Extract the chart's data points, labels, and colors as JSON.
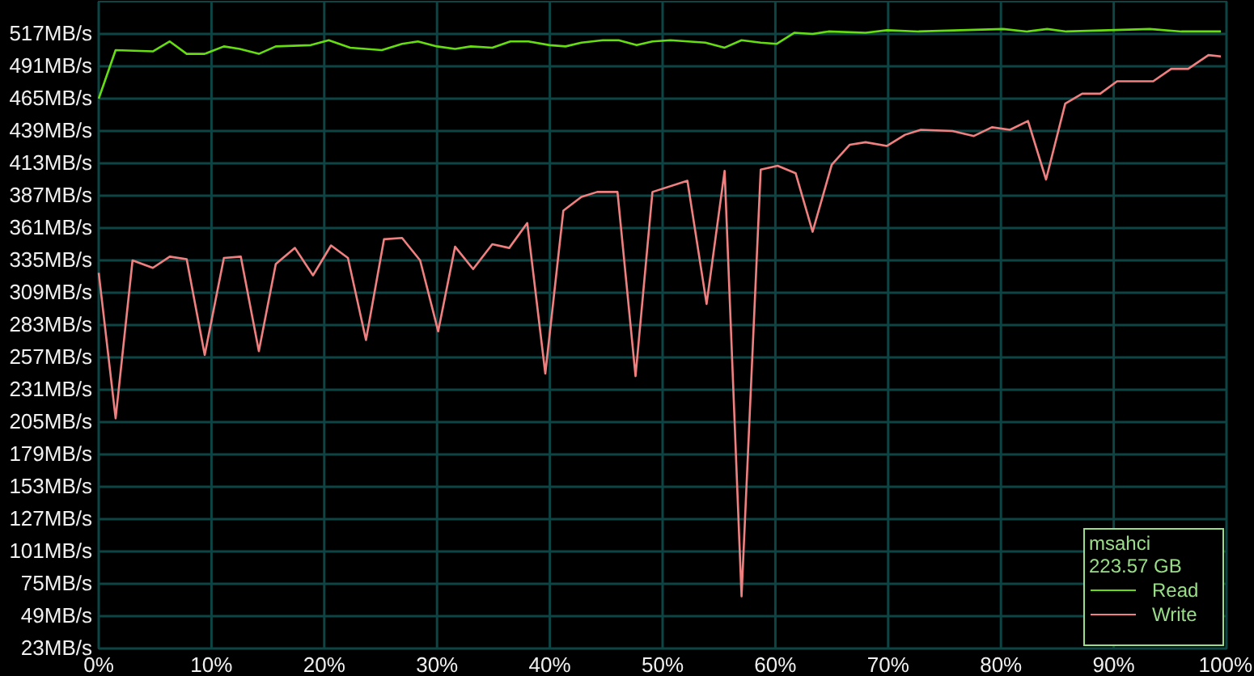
{
  "chart_data": {
    "type": "line",
    "xlim": [
      0,
      100
    ],
    "ylim": [
      23,
      543
    ],
    "xticks": [
      {
        "value": 0,
        "label": "0%"
      },
      {
        "value": 10,
        "label": "10%"
      },
      {
        "value": 20,
        "label": "20%"
      },
      {
        "value": 30,
        "label": "30%"
      },
      {
        "value": 40,
        "label": "40%"
      },
      {
        "value": 50,
        "label": "50%"
      },
      {
        "value": 60,
        "label": "60%"
      },
      {
        "value": 70,
        "label": "70%"
      },
      {
        "value": 80,
        "label": "80%"
      },
      {
        "value": 90,
        "label": "90%"
      },
      {
        "value": 100,
        "label": "100%"
      }
    ],
    "yticks": [
      {
        "value": 23,
        "label": "23MB/s"
      },
      {
        "value": 49,
        "label": "49MB/s"
      },
      {
        "value": 75,
        "label": "75MB/s"
      },
      {
        "value": 101,
        "label": "101MB/s"
      },
      {
        "value": 127,
        "label": "127MB/s"
      },
      {
        "value": 153,
        "label": "153MB/s"
      },
      {
        "value": 179,
        "label": "179MB/s"
      },
      {
        "value": 205,
        "label": "205MB/s"
      },
      {
        "value": 231,
        "label": "231MB/s"
      },
      {
        "value": 257,
        "label": "257MB/s"
      },
      {
        "value": 283,
        "label": "283MB/s"
      },
      {
        "value": 309,
        "label": "309MB/s"
      },
      {
        "value": 335,
        "label": "335MB/s"
      },
      {
        "value": 361,
        "label": "361MB/s"
      },
      {
        "value": 387,
        "label": "387MB/s"
      },
      {
        "value": 413,
        "label": "413MB/s"
      },
      {
        "value": 439,
        "label": "439MB/s"
      },
      {
        "value": 465,
        "label": "465MB/s"
      },
      {
        "value": 491,
        "label": "491MB/s"
      },
      {
        "value": 517,
        "label": "517MB/s"
      }
    ],
    "grid": true,
    "legend": "bottom right",
    "marker": "none",
    "line_style": "solid",
    "annotations": [
      "msahci",
      "223.57 GB"
    ],
    "series": [
      {
        "name": "Read",
        "color": "#66dd11",
        "x": [
          0,
          1.5,
          4.8,
          6.3,
          7.8,
          9.4,
          11.1,
          12.5,
          14.2,
          15.7,
          18.8,
          20.4,
          22.3,
          25.1,
          26.9,
          28.3,
          30.0,
          31.6,
          33.0,
          34.9,
          36.5,
          38.1,
          40.0,
          41.4,
          42.8,
          44.7,
          46.1,
          47.7,
          49.1,
          50.7,
          53.8,
          55.5,
          57.0,
          58.7,
          60.1,
          61.7,
          63.3,
          64.7,
          68.0,
          69.9,
          72.7,
          76.4,
          80.2,
          82.3,
          84.1,
          85.8,
          89.5,
          93.2,
          96.0,
          99.5
        ],
        "values": [
          465,
          504,
          503,
          511,
          501,
          501,
          507,
          505,
          501,
          507,
          508,
          512,
          506,
          504,
          509,
          511,
          507,
          505,
          507,
          506,
          511,
          511,
          508,
          507,
          510,
          512,
          512,
          508,
          511,
          512,
          510,
          506,
          512,
          510,
          509,
          518,
          517,
          519,
          518,
          520,
          519,
          520,
          521,
          519,
          521,
          519,
          520,
          521,
          519,
          519
        ]
      },
      {
        "name": "Write",
        "color": "#f08080",
        "x": [
          0,
          1.5,
          3.0,
          4.8,
          6.3,
          7.8,
          9.4,
          11.1,
          12.6,
          14.2,
          15.7,
          17.4,
          19.0,
          20.6,
          22.1,
          23.7,
          25.3,
          26.9,
          28.5,
          30.1,
          31.6,
          33.2,
          34.9,
          36.4,
          38.0,
          39.6,
          41.2,
          42.8,
          44.2,
          46.0,
          47.6,
          49.1,
          52.2,
          53.9,
          55.5,
          57.0,
          58.7,
          60.2,
          61.8,
          63.3,
          65.0,
          66.6,
          68.0,
          69.9,
          71.5,
          72.9,
          75.7,
          77.6,
          79.2,
          80.8,
          82.4,
          84.0,
          85.7,
          87.2,
          88.8,
          90.3,
          93.5,
          95.1,
          96.6,
          98.4,
          99.5
        ],
        "values": [
          325,
          208,
          335,
          329,
          338,
          336,
          259,
          337,
          338,
          262,
          332,
          345,
          323,
          347,
          337,
          271,
          352,
          353,
          335,
          278,
          346,
          328,
          348,
          345,
          365,
          244,
          375,
          386,
          390,
          390,
          242,
          390,
          399,
          300,
          407,
          65,
          408,
          411,
          405,
          358,
          412,
          428,
          430,
          427,
          436,
          440,
          439,
          435,
          442,
          440,
          447,
          400,
          461,
          469,
          469,
          479,
          479,
          489,
          489,
          500,
          499
        ]
      }
    ]
  }
}
